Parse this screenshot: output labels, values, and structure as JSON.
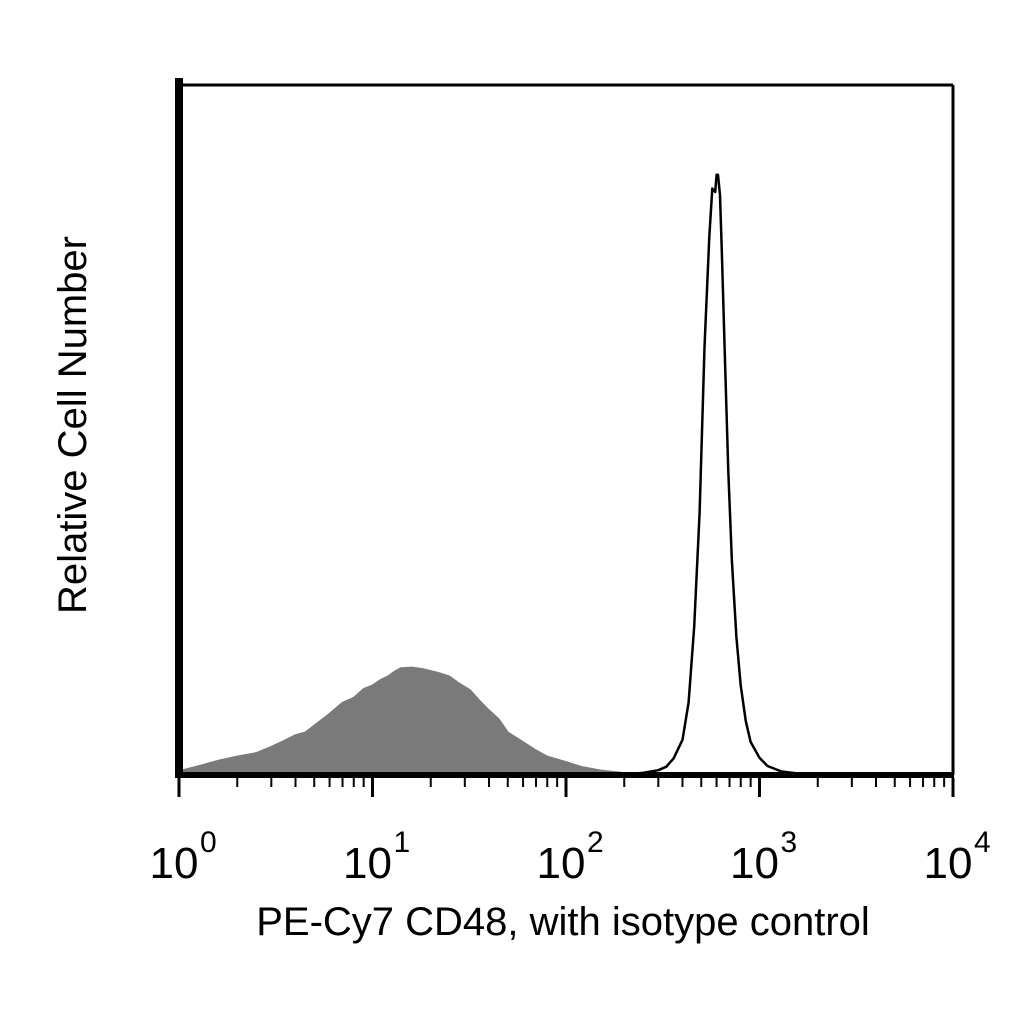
{
  "chart_data": {
    "type": "area",
    "title": "",
    "xlabel": "PE-Cy7 CD48, with isotype control",
    "ylabel": "Relative Cell Number",
    "x_scale": "log",
    "xlim": [
      1,
      10000
    ],
    "ylim": [
      0,
      100
    ],
    "grid": false,
    "x_major_ticks": [
      {
        "base": "10",
        "exp": "0",
        "value": 1
      },
      {
        "base": "10",
        "exp": "1",
        "value": 10
      },
      {
        "base": "10",
        "exp": "2",
        "value": 100
      },
      {
        "base": "10",
        "exp": "3",
        "value": 1000
      },
      {
        "base": "10",
        "exp": "4",
        "value": 10000
      }
    ],
    "series": [
      {
        "style": "filled",
        "color": "#7a7a7a",
        "x": [
          1.0,
          1.3,
          1.6,
          2.0,
          2.5,
          3.0,
          3.5,
          4.0,
          4.5,
          5.0,
          6.0,
          7.0,
          8.0,
          9.0,
          10.0,
          11.0,
          12.0,
          13.0,
          14.0,
          16.0,
          18.0,
          20.0,
          22.0,
          25.0,
          28.0,
          32.0,
          36.0,
          40.0,
          45.0,
          50.0,
          60.0,
          70.0,
          80.0,
          100.0,
          120.0,
          150.0,
          200.0,
          250.0,
          300.0
        ],
        "y": [
          0.6,
          1.4,
          2.1,
          2.7,
          3.2,
          4.1,
          5.0,
          5.8,
          6.2,
          7.2,
          8.9,
          10.5,
          11.2,
          12.5,
          13.0,
          13.8,
          14.3,
          15.0,
          15.5,
          15.6,
          15.4,
          15.1,
          14.8,
          14.3,
          13.3,
          12.3,
          10.7,
          9.4,
          8.1,
          6.2,
          4.8,
          3.6,
          2.7,
          1.9,
          1.2,
          0.7,
          0.3,
          0.1,
          0.0
        ]
      },
      {
        "style": "outline",
        "color": "#000000",
        "x": [
          150.0,
          200.0,
          250.0,
          300.0,
          330.0,
          360.0,
          400.0,
          430.0,
          460.0,
          490.0,
          520.0,
          550.0,
          570.0,
          590.0,
          600.0,
          610.0,
          625.0,
          640.0,
          660.0,
          690.0,
          720.0,
          760.0,
          800.0,
          850.0,
          900.0,
          1000.0,
          1100.0,
          1300.0,
          1600.0,
          2000.0
        ],
        "y": [
          0.0,
          0.1,
          0.3,
          0.7,
          1.2,
          2.4,
          5.1,
          10.5,
          21.5,
          38.0,
          62.0,
          78.0,
          85.0,
          84.5,
          87.0,
          87.0,
          84.0,
          75.0,
          62.0,
          44.0,
          31.0,
          20.0,
          13.0,
          7.8,
          4.8,
          2.5,
          1.3,
          0.5,
          0.2,
          0.0
        ]
      }
    ]
  }
}
